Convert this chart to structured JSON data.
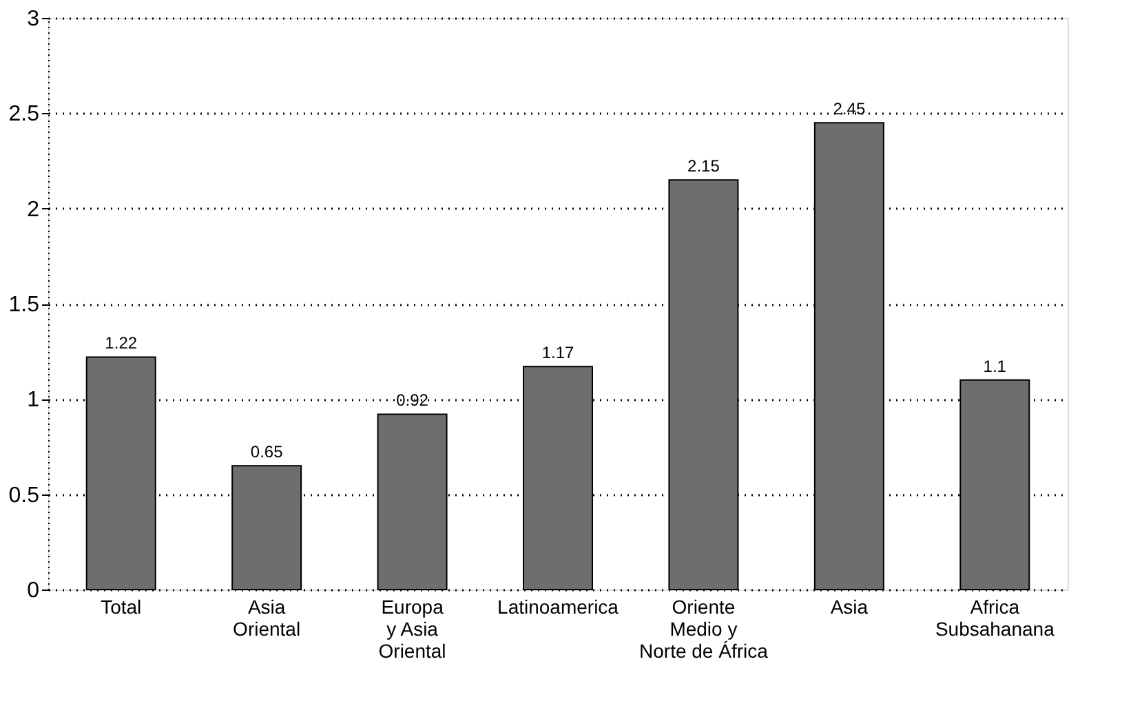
{
  "chart_data": {
    "type": "bar",
    "categories": [
      "Total",
      "Asia\nOriental",
      "Europa\ny Asia\nOriental",
      "Latinoamerica",
      "Oriente\nMedio y\nNorte de África",
      "Asia",
      "Africa\nSubsahanana"
    ],
    "values": [
      1.22,
      0.65,
      0.92,
      1.17,
      2.15,
      2.45,
      1.1
    ],
    "color": "#6e6e6e",
    "ylim": [
      0,
      3
    ],
    "yticks": [
      0,
      0.5,
      1,
      1.5,
      2,
      2.5,
      3
    ],
    "grid": "y",
    "data_labels": true
  }
}
